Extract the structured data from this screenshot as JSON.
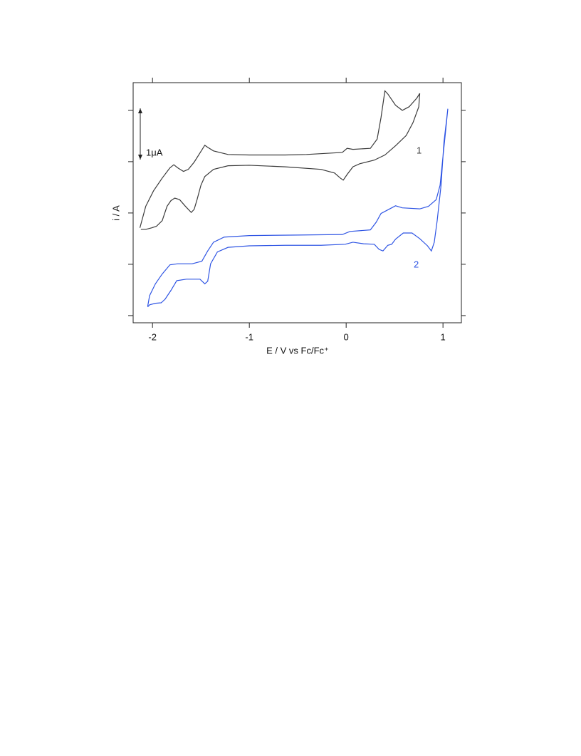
{
  "chart_data": {
    "type": "line",
    "x_label": "E / V vs Fc/Fc⁺",
    "y_label": "i / A",
    "xlim": [
      -2.2,
      1.19
    ],
    "xticks": [
      -2,
      -1,
      0,
      1
    ],
    "ylim": [
      -2.14e-06,
      2.54e-06
    ],
    "yticks": [
      -2e-06,
      -1e-06,
      0,
      1e-06,
      2e-06
    ],
    "scale_bar": {
      "label": "1μA",
      "value": 1e-06
    },
    "series": [
      {
        "name": "1",
        "color": "#3a3a3a",
        "x": [
          -2.13,
          -2.07,
          -1.99,
          -1.9,
          -1.82,
          -1.78,
          -1.74,
          -1.68,
          -1.63,
          -1.57,
          -1.51,
          -1.46,
          -1.43,
          -1.37,
          -1.22,
          -1.0,
          -0.63,
          -0.41,
          -0.04,
          0.01,
          0.07,
          0.25,
          0.32,
          0.36,
          0.4,
          0.43,
          0.51,
          0.58,
          0.65,
          0.73,
          0.76,
          0.75,
          0.69,
          0.62,
          0.51,
          0.4,
          0.29,
          0.14,
          0.07,
          0.01,
          -0.03,
          -0.06,
          -0.12,
          -0.26,
          -0.63,
          -1.0,
          -1.22,
          -1.37,
          -1.46,
          -1.5,
          -1.54,
          -1.57,
          -1.6,
          -1.66,
          -1.72,
          -1.77,
          -1.81,
          -1.85,
          -1.9,
          -1.96,
          -2.01,
          -2.07,
          -2.12
        ],
        "values": [
          -2.9e-07,
          1.3e-07,
          4.3e-07,
          6.8e-07,
          8.8e-07,
          9.4e-07,
          8.8e-07,
          8.1e-07,
          8.5e-07,
          9.9e-07,
          1.17e-06,
          1.32e-06,
          1.28e-06,
          1.21e-06,
          1.14e-06,
          1.13e-06,
          1.13e-06,
          1.14e-06,
          1.18e-06,
          1.26e-06,
          1.24e-06,
          1.26e-06,
          1.44e-06,
          1.86e-06,
          2.38e-06,
          2.32e-06,
          2.1e-06,
          2e-06,
          2.07e-06,
          2.24e-06,
          2.33e-06,
          2.07e-06,
          1.76e-06,
          1.51e-06,
          1.31e-06,
          1.13e-06,
          1.03e-06,
          9.6e-07,
          9e-07,
          7.5e-07,
          6.4e-07,
          6.8e-07,
          7.8e-07,
          8.5e-07,
          9e-07,
          9.3e-07,
          9.2e-07,
          8.5e-07,
          7.1e-07,
          5.4e-07,
          2.6e-07,
          7e-08,
          1e-08,
          1.3e-07,
          2.6e-07,
          2.9e-07,
          2.4e-07,
          1.3e-07,
          -1.5e-07,
          -2.6e-07,
          -2.9e-07,
          -3.2e-07,
          -3.2e-07
        ]
      },
      {
        "name": "2",
        "color": "#2f55e4",
        "x": [
          -2.05,
          -2.03,
          -1.97,
          -1.9,
          -1.82,
          -1.74,
          -1.59,
          -1.49,
          -1.43,
          -1.37,
          -1.26,
          -1.0,
          -0.5,
          -0.04,
          0.04,
          0.25,
          0.31,
          0.36,
          0.43,
          0.51,
          0.58,
          0.76,
          0.85,
          0.93,
          0.97,
          1.0,
          1.03,
          1.05,
          1.04,
          1.01,
          0.98,
          0.94,
          0.91,
          0.88,
          0.84,
          0.76,
          0.68,
          0.59,
          0.51,
          0.47,
          0.43,
          0.38,
          0.34,
          0.29,
          0.18,
          0.07,
          -0.01,
          -0.26,
          -0.63,
          -1.0,
          -1.22,
          -1.33,
          -1.4,
          -1.43,
          -1.46,
          -1.51,
          -1.65,
          -1.75,
          -1.81,
          -1.87,
          -1.91,
          -1.97,
          -2.03,
          -2.05
        ],
        "values": [
          -1.82e-06,
          -1.61e-06,
          -1.38e-06,
          -1.19e-06,
          -1.01e-06,
          -9.9e-07,
          -9.9e-07,
          -9.4e-07,
          -7.4e-07,
          -5.7e-07,
          -4.7e-07,
          -4.4e-07,
          -4.3e-07,
          -4.2e-07,
          -3.6e-07,
          -3.3e-07,
          -1.8e-07,
          -1e-08,
          6e-08,
          1.4e-07,
          1e-07,
          8e-08,
          1.3e-07,
          2.6e-07,
          5.4e-07,
          1.1e-06,
          1.65e-06,
          2.03e-06,
          1.86e-06,
          1.38e-06,
          5.4e-07,
          -1.5e-07,
          -5.7e-07,
          -7.4e-07,
          -6.4e-07,
          -5e-07,
          -3.9e-07,
          -3.9e-07,
          -5.1e-07,
          -6.1e-07,
          -6.3e-07,
          -7.4e-07,
          -7.1e-07,
          -6.1e-07,
          -6e-07,
          -5.7e-07,
          -6.1e-07,
          -6.3e-07,
          -6.3e-07,
          -6.4e-07,
          -6.7e-07,
          -7.6e-07,
          -9.9e-07,
          -1.33e-06,
          -1.38e-06,
          -1.29e-06,
          -1.29e-06,
          -1.32e-06,
          -1.51e-06,
          -1.68e-06,
          -1.75e-06,
          -1.76e-06,
          -1.79e-06,
          -1.83e-06
        ]
      }
    ]
  }
}
